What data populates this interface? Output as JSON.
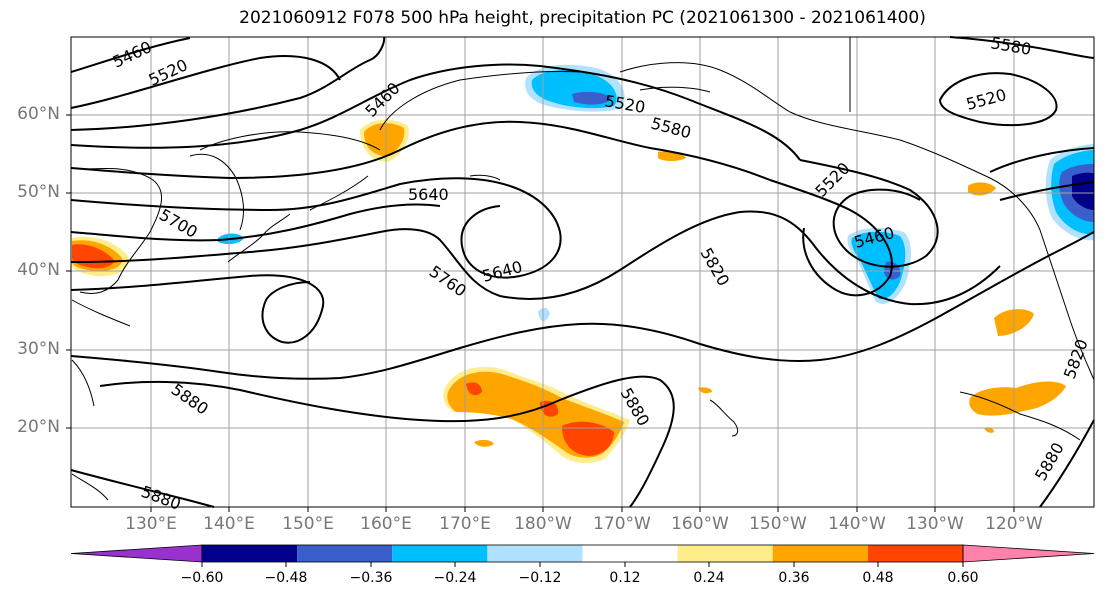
{
  "title": "2021060912 F078 500 hPa height, precipitation PC (2021061300 - 2021061400)",
  "lat_labels": [
    "60°N",
    "50°N",
    "40°N",
    "30°N",
    "20°N"
  ],
  "lon_labels": [
    "130°E",
    "140°E",
    "150°E",
    "160°E",
    "170°E",
    "180°W",
    "170°W",
    "160°W",
    "150°W",
    "140°W",
    "130°W",
    "120°W"
  ],
  "contour_labels": [
    "5460",
    "5520",
    "5460",
    "5520",
    "5580",
    "5640",
    "5700",
    "5760",
    "5640",
    "5820",
    "5520",
    "5460",
    "5580",
    "5520",
    "5880",
    "5880",
    "5880",
    "5880",
    "5820"
  ],
  "colorbar": {
    "ticks": [
      "−0.60",
      "−0.48",
      "−0.36",
      "−0.24",
      "−0.12",
      "0.12",
      "0.24",
      "0.36",
      "0.48",
      "0.60"
    ],
    "colors": [
      "#9932CC",
      "#00008B",
      "#3A5FCD",
      "#00BFFF",
      "#B0E2FF",
      "#FFFFFF",
      "#FFEC8B",
      "#FFA500",
      "#FF4500",
      "#B22222",
      "#FF82AB"
    ]
  },
  "colors": {
    "grid": "#A0A0A0",
    "tick_text": "#777777",
    "contour": "#000000"
  }
}
